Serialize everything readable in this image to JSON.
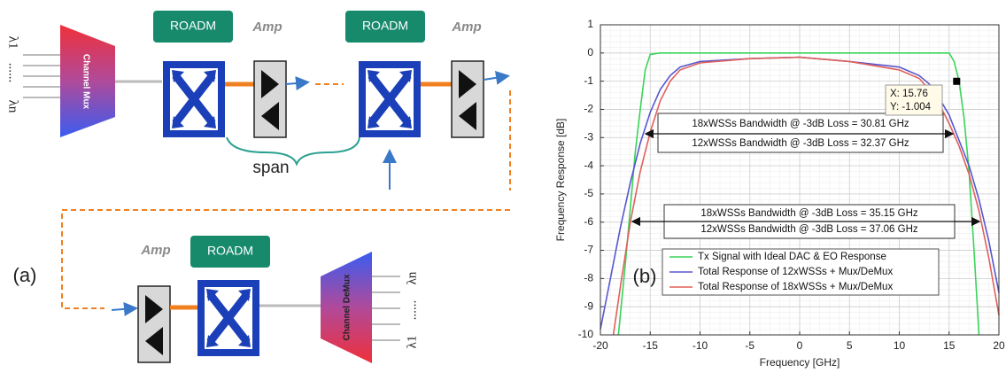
{
  "diagram": {
    "input_labels": [
      "λ1",
      "......",
      "λn"
    ],
    "mux": "Channel Mux",
    "roadm": [
      "ROADM",
      "ROADM",
      "ROADM"
    ],
    "amp": [
      "Amp",
      "Amp",
      "Amp"
    ],
    "span": "span",
    "panel": "(a)",
    "demux": "Channel DeMux",
    "output_labels": [
      "λn",
      "......",
      "λ1"
    ]
  },
  "chart_data": {
    "type": "line",
    "panel": "(b)",
    "xlabel": "Frequency [GHz]",
    "ylabel": "Frequency Response [dB]",
    "xlim": [
      -20,
      20
    ],
    "ylim": [
      -10,
      1
    ],
    "xticks": [
      -20,
      -15,
      -10,
      -5,
      0,
      5,
      10,
      15,
      20
    ],
    "yticks": [
      -10,
      -9,
      -8,
      -7,
      -6,
      -5,
      -4,
      -3,
      -2,
      -1,
      0,
      1
    ],
    "grid": true,
    "legend": "bottom-left",
    "series": [
      {
        "name": "Tx Signal with Ideal DAC & EO Response",
        "color": "#3ad35a",
        "x": [
          -18.2,
          -17.5,
          -17,
          -16.5,
          -16,
          -15.5,
          -15,
          -14,
          -10,
          0,
          10,
          14,
          15,
          15.5,
          16,
          16.5,
          17,
          17.5,
          18
        ],
        "values": [
          -10,
          -7.5,
          -5.5,
          -3.5,
          -2,
          -0.6,
          -0.05,
          0,
          0,
          0,
          0,
          0,
          0,
          -0.3,
          -1,
          -2.3,
          -4.2,
          -7,
          -10
        ]
      },
      {
        "name": "Total Response of 12xWSSs + Mux/DeMux",
        "color": "#5656d0",
        "x": [
          -20,
          -19,
          -18,
          -17,
          -16,
          -15,
          -14,
          -13,
          -12,
          -10,
          -5,
          0,
          5,
          10,
          12,
          13,
          14,
          15,
          16,
          17,
          18,
          19,
          20
        ],
        "values": [
          -9.8,
          -8,
          -6.2,
          -4.6,
          -3.2,
          -2.1,
          -1.3,
          -0.8,
          -0.5,
          -0.3,
          -0.2,
          -0.15,
          -0.3,
          -0.5,
          -0.8,
          -1.1,
          -1.6,
          -2.2,
          -3.1,
          -4,
          -5.2,
          -6.7,
          -8.5
        ]
      },
      {
        "name": "Total Response of 18xWSSs + Mux/DeMux",
        "color": "#e0605a",
        "x": [
          -18.7,
          -18,
          -17,
          -16,
          -15,
          -14,
          -13,
          -12,
          -10,
          -5,
          0,
          5,
          10,
          12,
          13,
          14,
          15,
          16,
          17,
          18,
          19,
          20
        ],
        "values": [
          -10,
          -8.3,
          -6,
          -4.2,
          -2.8,
          -1.7,
          -1,
          -0.6,
          -0.35,
          -0.2,
          -0.15,
          -0.3,
          -0.6,
          -0.9,
          -1.3,
          -1.8,
          -2.5,
          -3.3,
          -4.3,
          -5.6,
          -7.3,
          -9.3
        ]
      }
    ],
    "annotations": [
      "18xWSSs Bandwidth @ -3dB Loss = 30.81 GHz",
      "12xWSSs Bandwidth @ -3dB Loss = 32.37 GHz",
      "18xWSSs Bandwidth @ -3dB Loss = 35.15 GHz",
      "12xWSSs Bandwidth @ -3dB Loss = 37.06 GHz"
    ],
    "datatip": {
      "x": 15.76,
      "y": -1.004,
      "labels": [
        "X: 15.76",
        "Y: -1.004"
      ]
    }
  }
}
